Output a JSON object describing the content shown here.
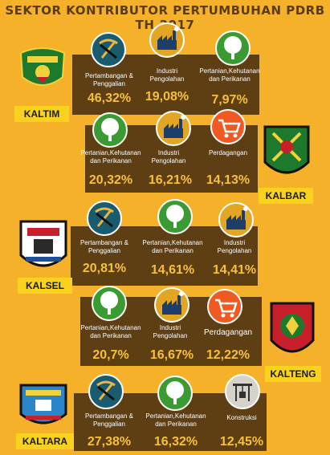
{
  "title": "SEKTOR KONTRIBUTOR PERTUMBUHAN PDRB TH.2017",
  "regions": [
    {
      "name": "KALTIM",
      "sectors": [
        {
          "label": "Pertambangan & Penggalian",
          "value": "46,32%",
          "icon": "mining-icon"
        },
        {
          "label": "Industri Pengolahan",
          "value": "19,08%",
          "icon": "factory-icon"
        },
        {
          "label": "Pertanian,Kehutanan dan Perikanan",
          "value": "7,97%",
          "icon": "tree-icon"
        }
      ]
    },
    {
      "name": "KALBAR",
      "sectors": [
        {
          "label": "Pertanian,Kehutanan dan Perikanan",
          "value": "20,32%",
          "icon": "tree-icon"
        },
        {
          "label": "Industri Pengolahan",
          "value": "16,21%",
          "icon": "factory-icon"
        },
        {
          "label": "Perdagangan",
          "value": "14,13%",
          "icon": "cart-icon"
        }
      ]
    },
    {
      "name": "KALSEL",
      "sectors": [
        {
          "label": "Pertambangan & Penggalian",
          "value": "20,81%",
          "icon": "mining-icon"
        },
        {
          "label": "Pertanian,Kehutanan dan Perikanan",
          "value": "14,61%",
          "icon": "tree-icon"
        },
        {
          "label": "Industri Pengolahan",
          "value": "14,41%",
          "icon": "factory-icon"
        }
      ]
    },
    {
      "name": "KALTENG",
      "sectors": [
        {
          "label": "Pertanian,Kehutanan dan Perikanan",
          "value": "20,7%",
          "icon": "tree-icon"
        },
        {
          "label": "Industri Pengolahan",
          "value": "16,67%",
          "icon": "factory-icon"
        },
        {
          "label": "Perdagangan",
          "value": "12,22%",
          "icon": "cart-icon"
        }
      ]
    },
    {
      "name": "KALTARA",
      "sectors": [
        {
          "label": "Pertambangan & Penggalian",
          "value": "27,38%",
          "icon": "mining-icon"
        },
        {
          "label": "Pertanian,Kehutanan dan Perikanan",
          "value": "16,32%",
          "icon": "tree-icon"
        },
        {
          "label": "Konstruksi",
          "value": "12,45%",
          "icon": "construction-icon"
        }
      ]
    }
  ],
  "colors": {
    "background": "#f6b12b",
    "band": "#5e3e13",
    "value_text": "#f6c03a",
    "name_tag": "#f8d21e",
    "mining_icon": "#195c70",
    "tree_icon": "#3a9b33",
    "factory_icon": "#e2a524",
    "cart_icon": "#f05a22",
    "construction_icon": "#d5d1cb"
  }
}
